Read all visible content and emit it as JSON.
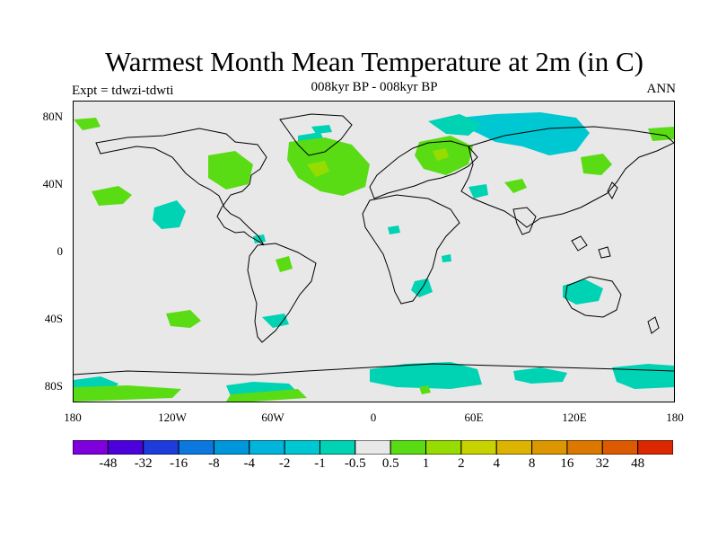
{
  "title": "Warmest Month Mean Temperature at 2m (in C)",
  "subtitle": "008kyr BP - 008kyr BP",
  "experiment": "Expt = tdwzi-tdwti",
  "period": "ANN",
  "axes": {
    "lat_labels": [
      "80N",
      "40N",
      "0",
      "40S",
      "80S"
    ],
    "lon_labels": [
      "180",
      "120W",
      "60W",
      "0",
      "60E",
      "120E",
      "180"
    ]
  },
  "colorbar": {
    "colors": [
      "#7f00dc",
      "#4b00dc",
      "#1e3cdc",
      "#0a78dc",
      "#0096dc",
      "#00b4dc",
      "#00c8d2",
      "#00d2b4",
      "#e8e8e8",
      "#5adc14",
      "#96dc00",
      "#c8d200",
      "#dcb400",
      "#dc9600",
      "#dc7800",
      "#dc5a00",
      "#dc2800"
    ],
    "labels": [
      "-48",
      "-32",
      "-16",
      "-8",
      "-4",
      "-2",
      "-1",
      "-0.5",
      "0.5",
      "1",
      "2",
      "4",
      "8",
      "16",
      "32",
      "48"
    ]
  }
}
